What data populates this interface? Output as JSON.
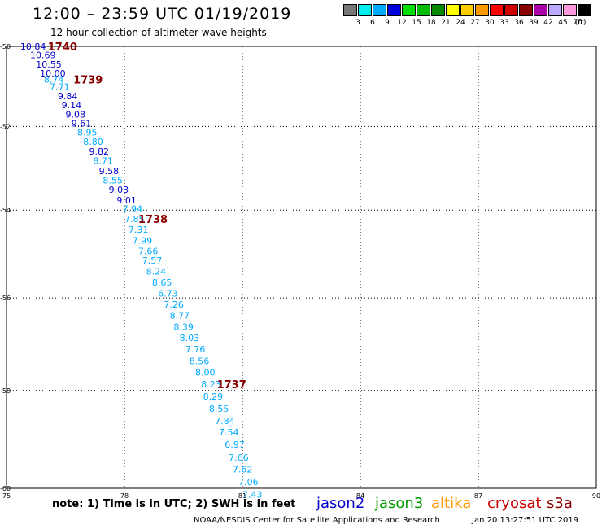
{
  "header": {
    "title": "12:00 – 23:59 UTC 01/19/2019",
    "subtitle": "12 hour collection of altimeter wave heights"
  },
  "scale": {
    "colors": [
      "#777777",
      "#00eeee",
      "#00aaff",
      "#0000dd",
      "#00dd00",
      "#00bb00",
      "#008800",
      "#ffff00",
      "#ffcc00",
      "#ff9900",
      "#ff0000",
      "#cc0000",
      "#880000",
      "#aa00aa",
      "#bbaaff",
      "#ff99dd",
      "#000000"
    ],
    "labels": [
      "3",
      "6",
      "9",
      "12",
      "15",
      "18",
      "21",
      "24",
      "27",
      "30",
      "33",
      "36",
      "39",
      "42",
      "45",
      "70",
      "(ft)"
    ]
  },
  "map": {
    "lon_ticks": [
      "75",
      "78",
      "81",
      "84",
      "87",
      "90"
    ],
    "lat_ticks": [
      "-50",
      "-52",
      "-54",
      "-56",
      "-58",
      "-60"
    ],
    "lon_values": [
      75,
      78,
      81,
      84,
      87,
      90
    ],
    "lat_values": [
      -50,
      -52,
      -54,
      -56,
      -58,
      -60
    ]
  },
  "chart_data": {
    "type": "scatter",
    "title": "12:00 – 23:59 UTC 01/19/2019",
    "subtitle": "12 hour collection of altimeter wave heights",
    "xlabel": "",
    "ylabel": "",
    "xlim": [
      75,
      90
    ],
    "ylim": [
      -60,
      -50
    ],
    "grid": true,
    "units": "ft",
    "observations": [
      {
        "lon": 75.35,
        "lat": -50.0,
        "swh": "10.84",
        "color": "#0000cc"
      },
      {
        "lon": 75.6,
        "lat": -50.22,
        "swh": "10.69",
        "color": "#0000cc"
      },
      {
        "lon": 75.75,
        "lat": -50.45,
        "swh": "10.55",
        "color": "#0000cc"
      },
      {
        "lon": 75.85,
        "lat": -50.68,
        "swh": "10.00",
        "color": "#0000cc"
      },
      {
        "lon": 75.95,
        "lat": -50.83,
        "swh": "8.74",
        "color": "#00aaff"
      },
      {
        "lon": 76.1,
        "lat": -51.02,
        "swh": "7.71",
        "color": "#00aaff"
      },
      {
        "lon": 76.3,
        "lat": -51.25,
        "swh": "9.84",
        "color": "#0000cc"
      },
      {
        "lon": 76.4,
        "lat": -51.47,
        "swh": "9.14",
        "color": "#0000cc"
      },
      {
        "lon": 76.5,
        "lat": -51.7,
        "swh": "9.08",
        "color": "#0000cc"
      },
      {
        "lon": 76.65,
        "lat": -51.92,
        "swh": "9.61",
        "color": "#0000cc"
      },
      {
        "lon": 76.8,
        "lat": -52.14,
        "swh": "8.95",
        "color": "#00aaff"
      },
      {
        "lon": 76.95,
        "lat": -52.37,
        "swh": "8.80",
        "color": "#00aaff"
      },
      {
        "lon": 77.1,
        "lat": -52.61,
        "swh": "9.82",
        "color": "#0000cc"
      },
      {
        "lon": 77.2,
        "lat": -52.83,
        "swh": "8.71",
        "color": "#00aaff"
      },
      {
        "lon": 77.35,
        "lat": -53.07,
        "swh": "9.58",
        "color": "#0000cc"
      },
      {
        "lon": 77.45,
        "lat": -53.3,
        "swh": "8.55",
        "color": "#00aaff"
      },
      {
        "lon": 77.6,
        "lat": -53.52,
        "swh": "9.03",
        "color": "#0000cc"
      },
      {
        "lon": 77.8,
        "lat": -53.77,
        "swh": "9.01",
        "color": "#0000cc"
      },
      {
        "lon": 77.95,
        "lat": -53.97,
        "swh": "7.94",
        "color": "#00aaff"
      },
      {
        "lon": 78.0,
        "lat": -54.2,
        "swh": "7.85",
        "color": "#00aaff"
      },
      {
        "lon": 78.1,
        "lat": -54.45,
        "swh": "7.31",
        "color": "#00aaff"
      },
      {
        "lon": 78.2,
        "lat": -54.7,
        "swh": "7.99",
        "color": "#00aaff"
      },
      {
        "lon": 78.35,
        "lat": -54.94,
        "swh": "7.66",
        "color": "#00aaff"
      },
      {
        "lon": 78.45,
        "lat": -55.16,
        "swh": "7.57",
        "color": "#00aaff"
      },
      {
        "lon": 78.55,
        "lat": -55.41,
        "swh": "8.24",
        "color": "#00aaff"
      },
      {
        "lon": 78.7,
        "lat": -55.65,
        "swh": "8.65",
        "color": "#00aaff"
      },
      {
        "lon": 78.85,
        "lat": -55.9,
        "swh": "6.73",
        "color": "#00aaff"
      },
      {
        "lon": 79.0,
        "lat": -56.14,
        "swh": "7.26",
        "color": "#00aaff"
      },
      {
        "lon": 79.15,
        "lat": -56.38,
        "swh": "8.77",
        "color": "#00aaff"
      },
      {
        "lon": 79.25,
        "lat": -56.63,
        "swh": "8.39",
        "color": "#00aaff"
      },
      {
        "lon": 79.4,
        "lat": -56.87,
        "swh": "8.03",
        "color": "#00aaff"
      },
      {
        "lon": 79.55,
        "lat": -57.12,
        "swh": "7.76",
        "color": "#00aaff"
      },
      {
        "lon": 79.65,
        "lat": -57.37,
        "swh": "8.56",
        "color": "#00aaff"
      },
      {
        "lon": 79.8,
        "lat": -57.62,
        "swh": "8.00",
        "color": "#00aaff"
      },
      {
        "lon": 79.95,
        "lat": -57.87,
        "swh": "8.23",
        "color": "#00aaff"
      },
      {
        "lon": 80.0,
        "lat": -58.12,
        "swh": "8.29",
        "color": "#00aaff"
      },
      {
        "lon": 80.15,
        "lat": -58.38,
        "swh": "8.55",
        "color": "#00aaff"
      },
      {
        "lon": 80.3,
        "lat": -58.63,
        "swh": "7.84",
        "color": "#00aaff"
      },
      {
        "lon": 80.4,
        "lat": -58.87,
        "swh": "7.54",
        "color": "#00aaff"
      },
      {
        "lon": 80.55,
        "lat": -59.12,
        "swh": "6.97",
        "color": "#00aaff"
      },
      {
        "lon": 80.65,
        "lat": -59.38,
        "swh": "7.66",
        "color": "#00aaff"
      },
      {
        "lon": 80.75,
        "lat": -59.62,
        "swh": "7.62",
        "color": "#00aaff"
      },
      {
        "lon": 80.9,
        "lat": -59.87,
        "swh": "7.06",
        "color": "#00aaff"
      },
      {
        "lon": 81.0,
        "lat": -60.12,
        "swh": "7.43",
        "color": "#00aaff"
      }
    ],
    "time_labels": [
      {
        "lon": 76.05,
        "lat": -50.0,
        "text": "1740",
        "color": "#880000"
      },
      {
        "lon": 76.7,
        "lat": -50.83,
        "text": "1739",
        "color": "#880000"
      },
      {
        "lon": 78.35,
        "lat": -54.2,
        "text": "1738",
        "color": "#880000"
      },
      {
        "lon": 80.35,
        "lat": -57.87,
        "text": "1737",
        "color": "#880000"
      }
    ]
  },
  "note": "note:  1) Time is in UTC;  2) SWH is in feet",
  "legend": [
    {
      "label": "jason2",
      "color": "#0000cc"
    },
    {
      "label": "jason3",
      "color": "#009900"
    },
    {
      "label": "altika",
      "color": "#ff9900"
    },
    {
      "label": "cryosat",
      "color": "#cc0000"
    },
    {
      "label": "s3a",
      "color": "#880000"
    }
  ],
  "footer": {
    "credit": "NOAA/NESDIS Center for Satellite Applications and Research",
    "date": "Jan 20 13:27:51 UTC 2019"
  }
}
